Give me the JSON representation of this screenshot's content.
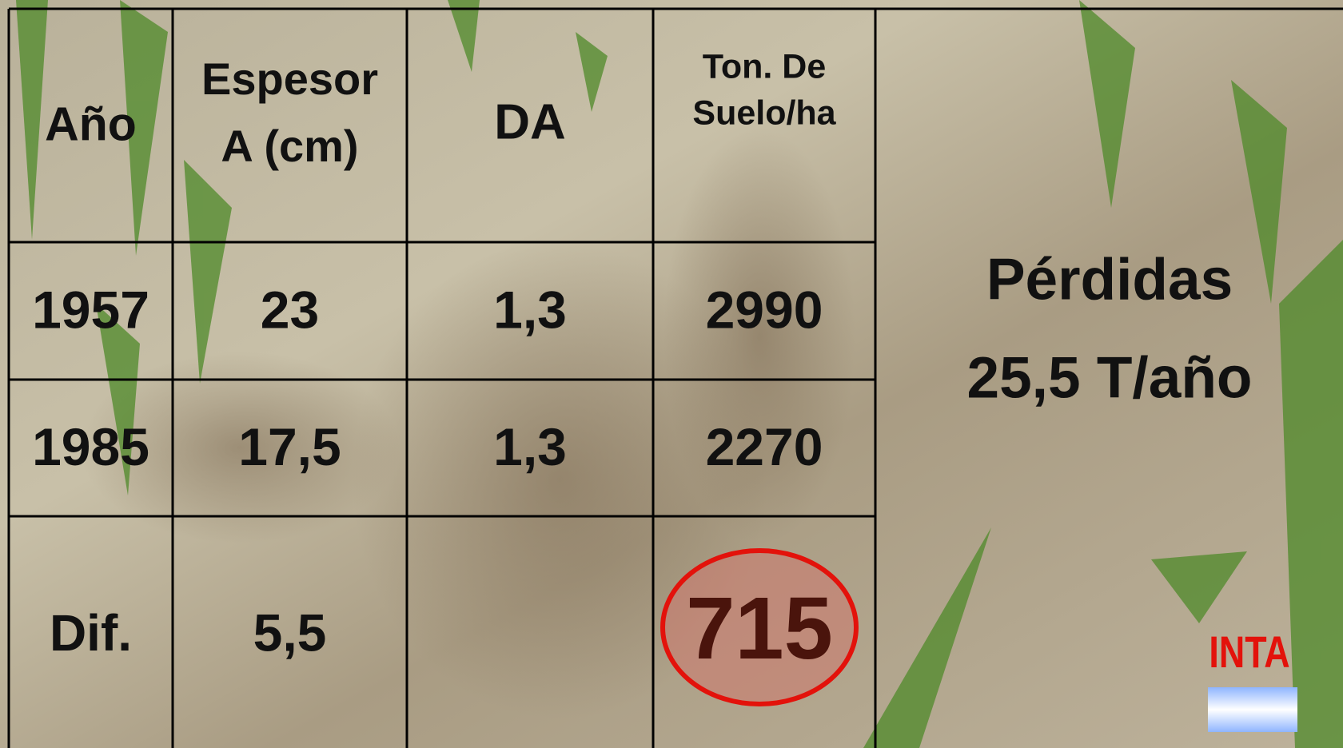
{
  "table": {
    "header": [
      [
        "Año"
      ],
      [
        "Espesor",
        "A (cm)"
      ],
      [
        "DA"
      ],
      [
        "Ton. De",
        "Suelo/ha"
      ]
    ],
    "rows": [
      [
        "1957",
        "23",
        "1,3",
        "2990"
      ],
      [
        "1985",
        "17,5",
        "1,3",
        "2270"
      ],
      [
        "Dif.",
        "5,5",
        null,
        "715"
      ]
    ]
  },
  "side": {
    "lines": [
      "Pérdidas",
      "25,5 T/año"
    ]
  },
  "logo": {
    "text": "INTA"
  }
}
